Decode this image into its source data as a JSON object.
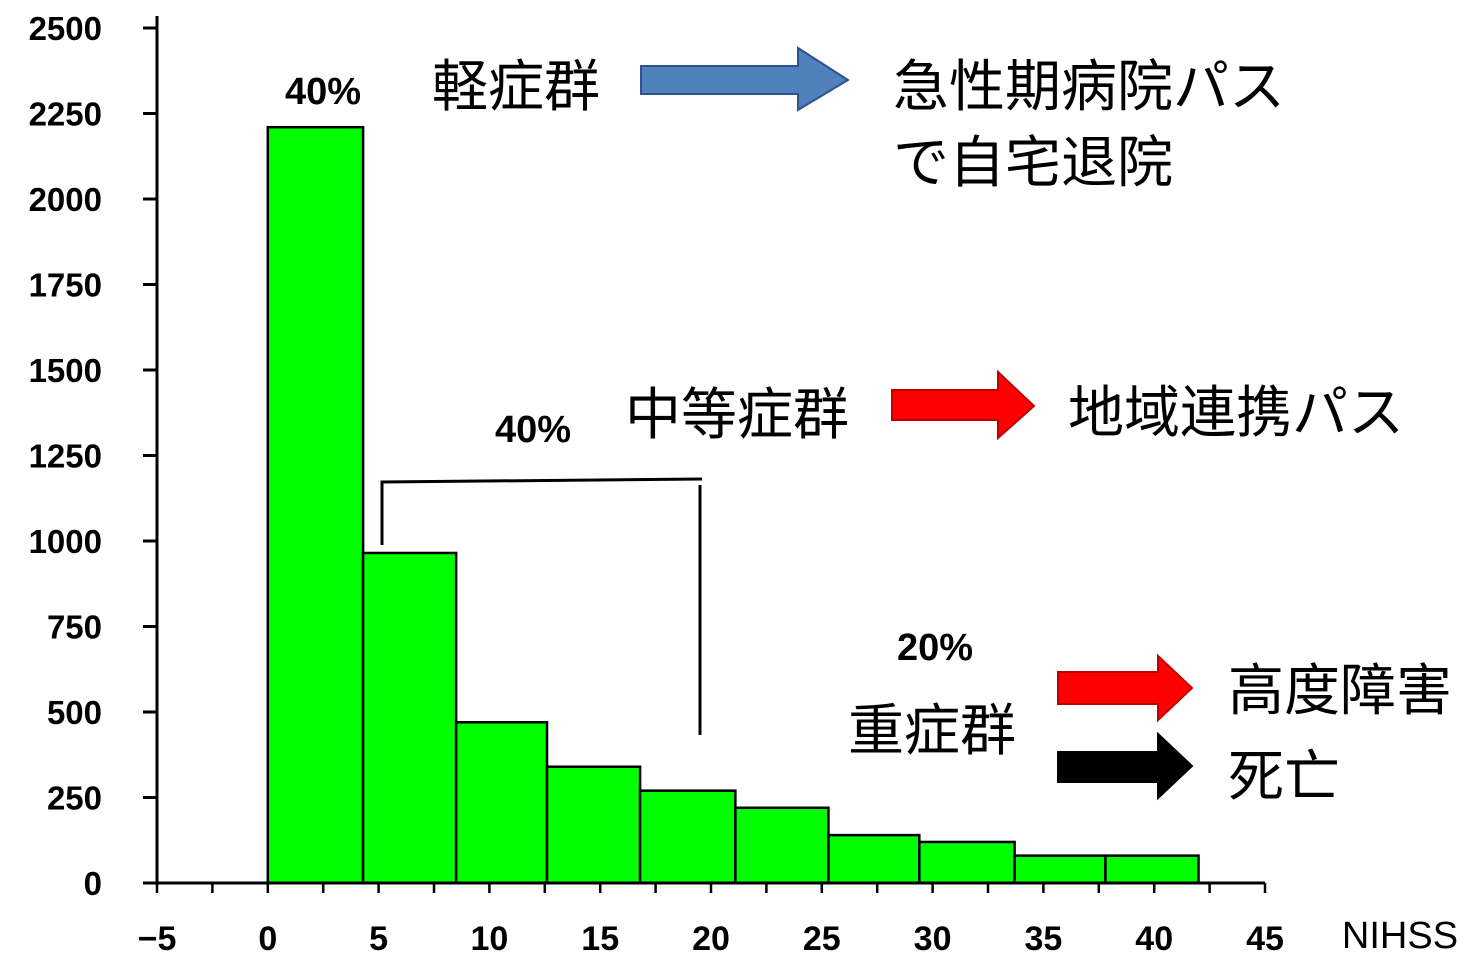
{
  "chart_data": {
    "type": "bar",
    "title": "",
    "xlabel": "NIHSS",
    "ylabel": "",
    "xlim": [
      -5,
      45
    ],
    "ylim": [
      0,
      2500
    ],
    "x_ticks": [
      "−5",
      "0",
      "5",
      "10",
      "15",
      "20",
      "25",
      "30",
      "35",
      "40",
      "45"
    ],
    "y_ticks": [
      "0",
      "250",
      "500",
      "750",
      "1000",
      "1250",
      "1500",
      "1750",
      "2000",
      "2250",
      "2500"
    ],
    "bins": [
      {
        "x0": 0.0,
        "x1": 4.3,
        "value": 2210
      },
      {
        "x0": 4.3,
        "x1": 8.5,
        "value": 965
      },
      {
        "x0": 8.5,
        "x1": 12.6,
        "value": 470
      },
      {
        "x0": 12.6,
        "x1": 16.8,
        "value": 340
      },
      {
        "x0": 16.8,
        "x1": 21.1,
        "value": 270
      },
      {
        "x0": 21.1,
        "x1": 25.3,
        "value": 220
      },
      {
        "x0": 25.3,
        "x1": 29.4,
        "value": 140
      },
      {
        "x0": 29.4,
        "x1": 33.7,
        "value": 120
      },
      {
        "x0": 33.7,
        "x1": 37.8,
        "value": 80
      },
      {
        "x0": 37.8,
        "x1": 42.0,
        "value": 80
      }
    ],
    "bar_color": "#00ff00",
    "grid": false,
    "annotations": {
      "mild": {
        "percent": "40%",
        "group": "軽症群",
        "outcome_line1": "急性期病院パス",
        "outcome_line2": "で自宅退院",
        "arrow_color": "#4f81bd"
      },
      "moderate": {
        "percent": "40%",
        "group": "中等症群",
        "outcome": "地域連携パス",
        "arrow_color": "#ff0000",
        "bracket_range": [
          5,
          20
        ]
      },
      "severe": {
        "percent": "20%",
        "group": "重症群",
        "outcome_1": "高度障害",
        "outcome_2": "死亡",
        "arrow_1_color": "#ff0000",
        "arrow_2_color": "#000000"
      }
    }
  }
}
